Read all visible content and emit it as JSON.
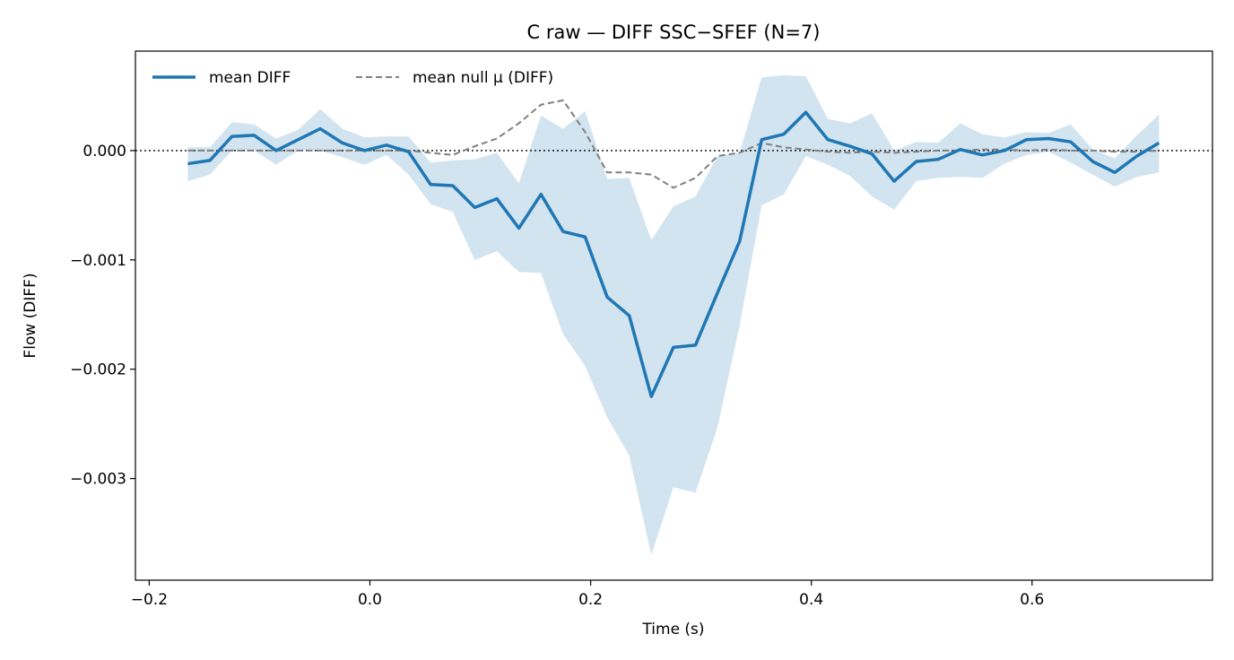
{
  "chart_data": {
    "type": "line",
    "title": "C raw — DIFF SSC−SFEF (N=7)",
    "xlabel": "Time (s)",
    "ylabel": "Flow (DIFF)",
    "xlim": [
      -0.2125,
      0.7635
    ],
    "ylim": [
      -0.00393,
      0.00091
    ],
    "xticks": [
      -0.2,
      0.0,
      0.2,
      0.4,
      0.6
    ],
    "xtick_labels": [
      "−0.2",
      "0.0",
      "0.2",
      "0.4",
      "0.6"
    ],
    "yticks": [
      0.0,
      -0.001,
      -0.002,
      -0.003
    ],
    "ytick_labels": [
      "0.000",
      "−0.001",
      "−0.002",
      "−0.003"
    ],
    "reference_line": {
      "y": 0,
      "style": "dotted",
      "color": "#000000"
    },
    "legend": {
      "placement": "top-left",
      "entries": [
        "mean DIFF",
        "mean null μ (DIFF)"
      ]
    },
    "x": [
      -0.165,
      -0.145,
      -0.125,
      -0.105,
      -0.085,
      -0.065,
      -0.045,
      -0.025,
      -0.005,
      0.015,
      0.035,
      0.055,
      0.075,
      0.095,
      0.115,
      0.135,
      0.155,
      0.175,
      0.195,
      0.215,
      0.235,
      0.255,
      0.275,
      0.295,
      0.315,
      0.335,
      0.355,
      0.375,
      0.395,
      0.415,
      0.435,
      0.455,
      0.475,
      0.495,
      0.515,
      0.535,
      0.555,
      0.575,
      0.595,
      0.615,
      0.635,
      0.655,
      0.675,
      0.695,
      0.715
    ],
    "series": [
      {
        "name": "mean DIFF",
        "color": "#1f77b4",
        "style": "solid",
        "values": [
          -0.00012,
          -9e-05,
          0.00013,
          0.00014,
          0.0,
          0.0001,
          0.0002,
          7e-05,
          0.0,
          5e-05,
          -1e-05,
          -0.00031,
          -0.00032,
          -0.00052,
          -0.00044,
          -0.00071,
          -0.0004,
          -0.00074,
          -0.00079,
          -0.00134,
          -0.00151,
          -0.00225,
          -0.0018,
          -0.00178,
          -0.0013,
          -0.00083,
          0.0001,
          0.00015,
          0.00035,
          0.0001,
          4e-05,
          -3e-05,
          -0.00028,
          -0.0001,
          -8e-05,
          1e-05,
          -4e-05,
          0.0,
          0.0001,
          0.00011,
          8e-05,
          -0.0001,
          -0.0002,
          -5e-05,
          7e-05
        ]
      },
      {
        "name": "mean null μ (DIFF)",
        "color": "#808080",
        "style": "dashed",
        "values": [
          0.0,
          0.0,
          0.0,
          0.0,
          0.0,
          0.0,
          0.0,
          0.0,
          0.0,
          0.0,
          0.0,
          -2e-05,
          -4e-05,
          4e-05,
          0.00011,
          0.00025,
          0.00042,
          0.00046,
          0.00017,
          -0.0002,
          -0.0002,
          -0.00022,
          -0.00034,
          -0.00025,
          -5e-05,
          -2e-05,
          7e-05,
          3e-05,
          1e-05,
          -1e-05,
          -2e-05,
          -1e-05,
          -2e-05,
          -1e-05,
          0.0,
          0.0,
          1e-05,
          1e-05,
          0.0,
          1e-05,
          0.0,
          0.0,
          -1e-05,
          -1e-05,
          0.0
        ]
      }
    ],
    "band": {
      "color": "#1f77b4",
      "opacity": 0.2,
      "upper": [
        3e-05,
        3e-05,
        0.00026,
        0.00024,
        0.00011,
        0.00019,
        0.00038,
        0.0002,
        0.00012,
        0.00013,
        0.00013,
        -0.00011,
        -9e-05,
        -8e-05,
        -2e-05,
        -0.0003,
        0.00032,
        0.0002,
        0.00036,
        -0.00026,
        -0.00025,
        -0.00082,
        -0.00051,
        -0.00042,
        -5e-05,
        -2e-05,
        0.00067,
        0.00069,
        0.00068,
        0.00029,
        0.00025,
        0.00034,
        0.0,
        8e-05,
        7e-05,
        0.00025,
        0.00015,
        0.00012,
        0.00017,
        0.00016,
        0.00024,
        1e-05,
        -7e-05,
        0.00014,
        0.00033
      ],
      "lower": [
        -0.00028,
        -0.00022,
        0.0,
        0.0,
        -0.00013,
        0.0,
        0.0,
        -6e-05,
        -0.00013,
        -4e-05,
        -0.00022,
        -0.00049,
        -0.00056,
        -0.001,
        -0.00092,
        -0.00111,
        -0.00112,
        -0.00168,
        -0.00197,
        -0.00244,
        -0.00279,
        -0.0037,
        -0.00308,
        -0.00313,
        -0.00253,
        -0.0016,
        -0.0005,
        -0.0004,
        -5e-05,
        -0.00013,
        -0.00023,
        -0.00042,
        -0.00054,
        -0.00028,
        -0.00025,
        -0.00024,
        -0.00025,
        -0.00012,
        -4e-05,
        -1e-05,
        -0.00011,
        -0.00022,
        -0.00033,
        -0.00024,
        -0.0002
      ]
    }
  }
}
